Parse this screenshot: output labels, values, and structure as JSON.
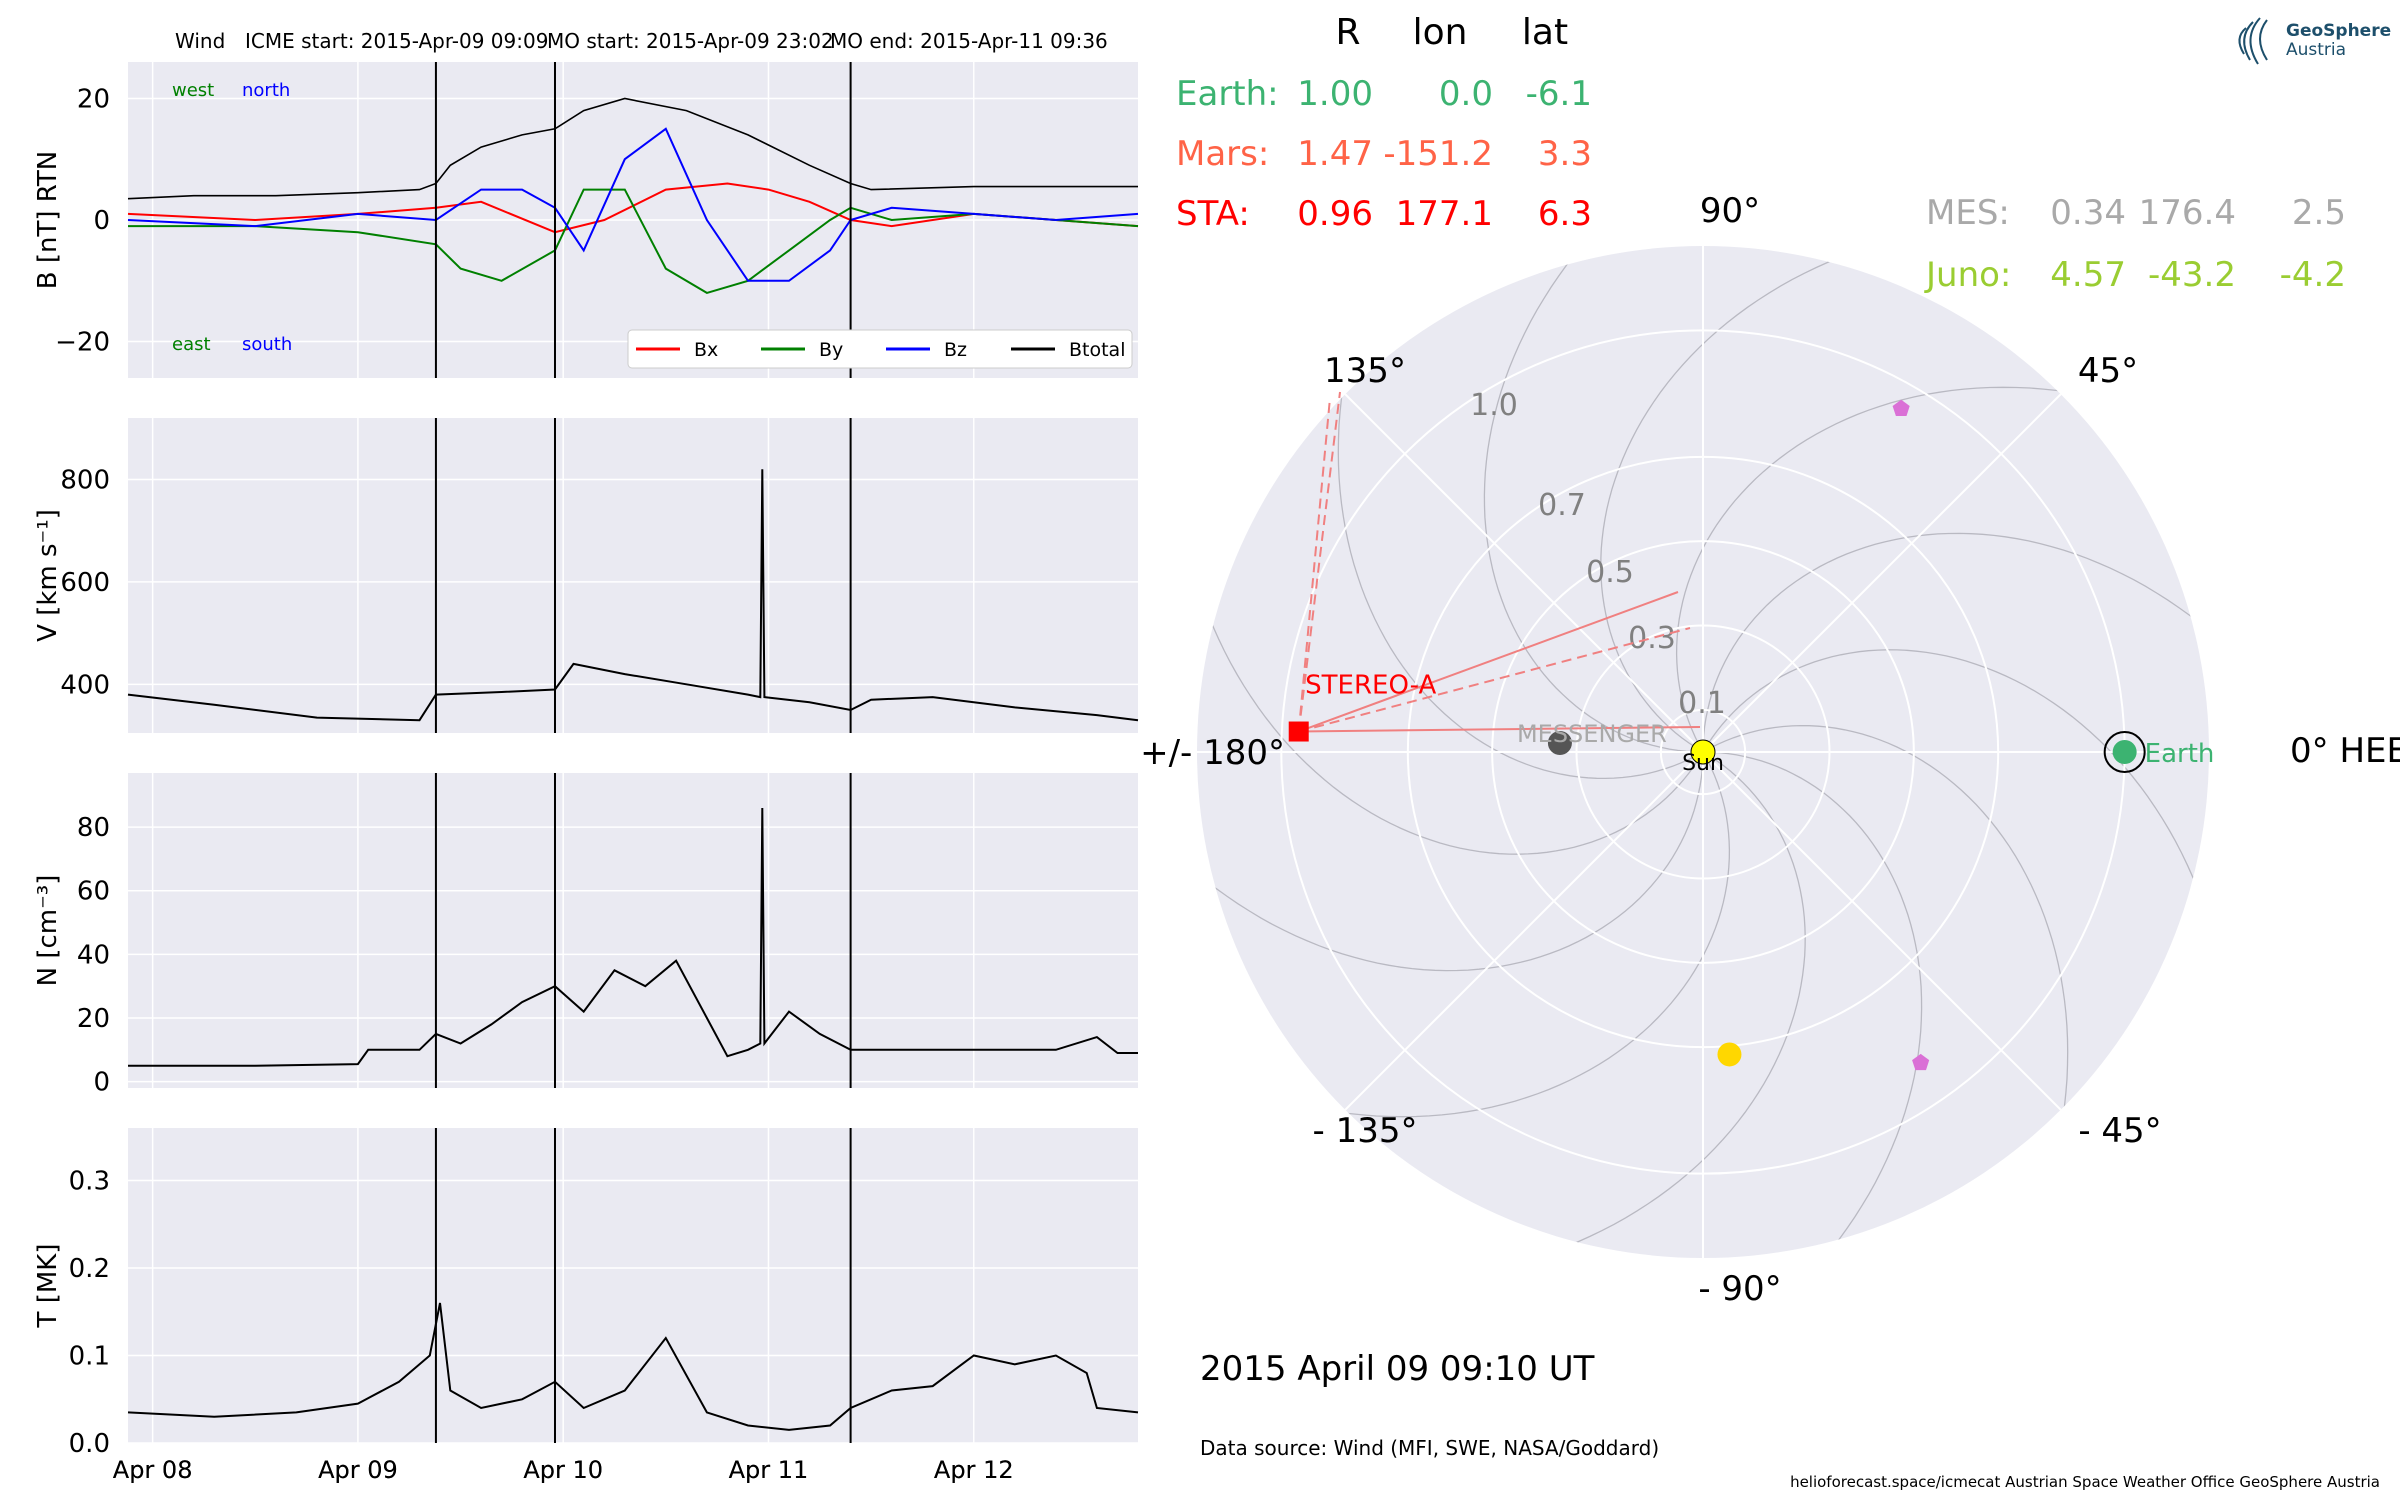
{
  "header": {
    "spacecraft": "Wind",
    "icme_start": "ICME start: 2015-Apr-09 09:09",
    "mo_start": "MO start: 2015-Apr-09 23:02",
    "mo_end": "MO end: 2015-Apr-11 09:36"
  },
  "logo": {
    "line1": "GeoSphere",
    "line2": "Austria"
  },
  "footer": {
    "datetime": "2015 April 09  09:10 UT",
    "source": "Data source: Wind (MFI, SWE, NASA/Goddard)",
    "credit": "helioforecast.space/icmecat   Austrian Space Weather Office   GeoSphere Austria"
  },
  "colors": {
    "panel_bg": "#eaeaf2",
    "grid": "#ffffff",
    "bx": "#ff0000",
    "by": "#008000",
    "bz": "#0000ff",
    "btotal": "#000000",
    "earth": "#3cb371",
    "mars": "#ff6347",
    "sta": "#ff0000",
    "mes": "#a9a9a9",
    "juno": "#9acd32",
    "sun": "#ffff00",
    "venus": "#ffd700",
    "probe": "#da70d6",
    "messenger_dot": "#555555"
  },
  "positions_table": {
    "headers": [
      "R",
      "lon",
      "lat"
    ],
    "rows": [
      {
        "name": "Earth:",
        "R": "1.00",
        "lon": "0.0",
        "lat": "-6.1",
        "color": "#3cb371"
      },
      {
        "name": "Mars:",
        "R": "1.47",
        "lon": "-151.2",
        "lat": "3.3",
        "color": "#ff6347"
      },
      {
        "name": "STA:",
        "R": "0.96",
        "lon": "177.1",
        "lat": "6.3",
        "color": "#ff0000"
      }
    ],
    "rows_right": [
      {
        "name": "MES:",
        "R": "0.34",
        "lon": "176.4",
        "lat": "2.5",
        "color": "#a9a9a9"
      },
      {
        "name": "Juno:",
        "R": "4.57",
        "lon": "-43.2",
        "lat": "-4.2",
        "color": "#9acd32"
      }
    ]
  },
  "chart_data": [
    {
      "type": "line",
      "panel": "magnetic field",
      "ylabel": "B [nT] RTN",
      "ylim": [
        -26,
        26
      ],
      "yticks": [
        -20,
        0,
        20
      ],
      "ytick_labels": [
        "−20",
        "0",
        "20"
      ],
      "xlim_days": [
        -0.12,
        4.8
      ],
      "xtick_labels": [
        "Apr 08",
        "Apr 09",
        "Apr 10",
        "Apr 11",
        "Apr 12"
      ],
      "annotations": {
        "top_left": "west",
        "top_right": "north",
        "bottom_left": "east",
        "bottom_right": "south"
      },
      "legend": {
        "placement": "lower right",
        "entries": [
          "Bx",
          "By",
          "Bz",
          "Btotal"
        ]
      },
      "event_lines_days": [
        1.38,
        1.96,
        3.4
      ],
      "series": [
        {
          "name": "Btotal",
          "x": [
            -0.12,
            0.2,
            0.6,
            1.0,
            1.3,
            1.38,
            1.45,
            1.6,
            1.8,
            1.96,
            2.1,
            2.3,
            2.6,
            2.9,
            3.2,
            3.4,
            3.5,
            4.0,
            4.5,
            4.8
          ],
          "values": [
            3.5,
            4,
            4,
            4.5,
            5,
            6,
            9,
            12,
            14,
            15,
            18,
            20,
            18,
            14,
            9,
            6,
            5,
            5.5,
            5.5,
            5.5
          ]
        },
        {
          "name": "Bx",
          "x": [
            -0.12,
            0.5,
            1.0,
            1.38,
            1.6,
            1.96,
            2.2,
            2.5,
            2.8,
            3.0,
            3.2,
            3.4,
            3.6,
            4.0,
            4.4,
            4.8
          ],
          "values": [
            1,
            0,
            1,
            2,
            3,
            -2,
            0,
            5,
            6,
            5,
            3,
            0,
            -1,
            1,
            0,
            -1
          ]
        },
        {
          "name": "By",
          "x": [
            -0.12,
            0.5,
            1.0,
            1.38,
            1.5,
            1.7,
            1.96,
            2.1,
            2.3,
            2.5,
            2.7,
            2.9,
            3.1,
            3.3,
            3.4,
            3.6,
            4.0,
            4.4,
            4.8
          ],
          "values": [
            -1,
            -1,
            -2,
            -4,
            -8,
            -10,
            -5,
            5,
            5,
            -8,
            -12,
            -10,
            -5,
            0,
            2,
            0,
            1,
            0,
            -1
          ]
        },
        {
          "name": "Bz",
          "x": [
            -0.12,
            0.5,
            1.0,
            1.38,
            1.6,
            1.8,
            1.96,
            2.1,
            2.3,
            2.5,
            2.7,
            2.9,
            3.1,
            3.3,
            3.4,
            3.6,
            4.0,
            4.4,
            4.8
          ],
          "values": [
            0,
            -1,
            1,
            0,
            5,
            5,
            2,
            -5,
            10,
            15,
            0,
            -10,
            -10,
            -5,
            0,
            2,
            1,
            0,
            1
          ]
        }
      ]
    },
    {
      "type": "line",
      "panel": "speed",
      "ylabel": "V [km s⁻¹]",
      "ylim": [
        305,
        920
      ],
      "yticks": [
        400,
        600,
        800
      ],
      "xlim_days": [
        -0.12,
        4.8
      ],
      "event_lines_days": [
        1.38,
        1.96,
        3.4
      ],
      "series": [
        {
          "name": "V",
          "x": [
            -0.12,
            0.3,
            0.8,
            1.3,
            1.38,
            1.7,
            1.96,
            2.05,
            2.3,
            2.6,
            2.9,
            2.96,
            2.97,
            2.98,
            3.2,
            3.4,
            3.5,
            3.8,
            4.2,
            4.6,
            4.8
          ],
          "values": [
            380,
            360,
            335,
            330,
            380,
            385,
            390,
            440,
            420,
            400,
            380,
            375,
            820,
            375,
            365,
            350,
            370,
            375,
            355,
            340,
            330
          ]
        }
      ]
    },
    {
      "type": "line",
      "panel": "density",
      "ylabel": "N [cm⁻³]",
      "ylim": [
        -2,
        97
      ],
      "yticks": [
        0,
        20,
        40,
        60,
        80
      ],
      "xlim_days": [
        -0.12,
        4.8
      ],
      "event_lines_days": [
        1.38,
        1.96,
        3.4
      ],
      "series": [
        {
          "name": "N",
          "x": [
            -0.12,
            0.5,
            1.0,
            1.05,
            1.3,
            1.38,
            1.5,
            1.65,
            1.8,
            1.96,
            2.1,
            2.25,
            2.4,
            2.55,
            2.7,
            2.8,
            2.9,
            2.96,
            2.97,
            2.98,
            3.1,
            3.25,
            3.4,
            3.6,
            4.0,
            4.4,
            4.6,
            4.7,
            4.8
          ],
          "values": [
            5,
            5,
            5.5,
            10,
            10,
            15,
            12,
            18,
            25,
            30,
            22,
            35,
            30,
            38,
            20,
            8,
            10,
            12,
            86,
            12,
            22,
            15,
            10,
            10,
            10,
            10,
            14,
            9,
            9
          ]
        }
      ]
    },
    {
      "type": "line",
      "panel": "temperature",
      "ylabel": "T [MK]",
      "ylim": [
        0,
        0.36
      ],
      "yticks": [
        0.0,
        0.1,
        0.2,
        0.3
      ],
      "ytick_labels": [
        "0.0",
        "0.1",
        "0.2",
        "0.3"
      ],
      "xlim_days": [
        -0.12,
        4.8
      ],
      "xtick_labels": [
        "Apr 08",
        "Apr 09",
        "Apr 10",
        "Apr 11",
        "Apr 12"
      ],
      "event_lines_days": [
        1.38,
        1.96,
        3.4
      ],
      "series": [
        {
          "name": "T",
          "x": [
            -0.12,
            0.3,
            0.7,
            1.0,
            1.2,
            1.35,
            1.4,
            1.45,
            1.6,
            1.8,
            1.96,
            2.1,
            2.3,
            2.5,
            2.7,
            2.9,
            3.1,
            3.3,
            3.4,
            3.6,
            3.8,
            4.0,
            4.2,
            4.4,
            4.55,
            4.6,
            4.8
          ],
          "values": [
            0.035,
            0.03,
            0.035,
            0.045,
            0.07,
            0.1,
            0.16,
            0.06,
            0.04,
            0.05,
            0.07,
            0.04,
            0.06,
            0.12,
            0.035,
            0.02,
            0.015,
            0.02,
            0.04,
            0.06,
            0.065,
            0.1,
            0.09,
            0.1,
            0.08,
            0.04,
            0.035
          ]
        }
      ]
    },
    {
      "type": "scatter",
      "panel": "polar heliosphere",
      "rlim": [
        0,
        1.2
      ],
      "r_ticks": [
        "0.1",
        "0.3",
        "0.5",
        "0.7",
        "1.0"
      ],
      "angle_labels": [
        "0° HEEQ",
        "45°",
        "90°",
        "135°",
        "+/- 180°",
        "- 135°",
        "- 90°",
        "- 45°"
      ],
      "bodies": [
        {
          "name": "Sun",
          "r": 0.0,
          "lon_deg": 0.0,
          "color": "#ffff00",
          "label": "Sun"
        },
        {
          "name": "Earth",
          "r": 1.0,
          "lon_deg": 0.0,
          "color": "#3cb371",
          "label": "Earth"
        },
        {
          "name": "STEREO-A",
          "r": 0.96,
          "lon_deg": 177.1,
          "color": "#ff0000",
          "label": "STEREO-A"
        },
        {
          "name": "MESSENGER",
          "r": 0.34,
          "lon_deg": 176.4,
          "color": "#555555",
          "label": "MESSENGER"
        },
        {
          "name": "Venus",
          "r": 0.72,
          "lon_deg": -85.0,
          "color": "#ffd700",
          "label": ""
        },
        {
          "name": "probe-1",
          "r": 0.94,
          "lon_deg": 60.0,
          "color": "#da70d6",
          "label": ""
        },
        {
          "name": "probe-2",
          "r": 0.9,
          "lon_deg": -55.0,
          "color": "#da70d6",
          "label": ""
        }
      ]
    }
  ]
}
